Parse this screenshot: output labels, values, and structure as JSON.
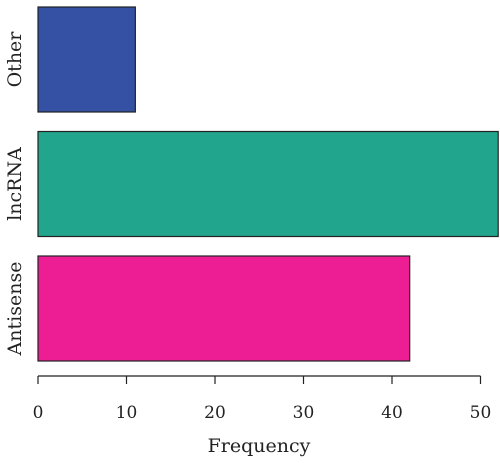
{
  "chart_data": {
    "type": "bar",
    "orientation": "horizontal",
    "categories": [
      "Antisense",
      "lncRNA",
      "Other"
    ],
    "values": [
      42,
      52,
      11
    ],
    "colors": [
      "#ED1E94",
      "#21A68D",
      "#3451A4"
    ],
    "xlabel": "Frequency",
    "ylabel": "",
    "xlim": [
      0,
      52
    ],
    "xticks": [
      0,
      10,
      20,
      30,
      40,
      50
    ],
    "tick_labels": [
      "0",
      "10",
      "20",
      "30",
      "40",
      "50"
    ],
    "grid": false,
    "legend": "none"
  }
}
